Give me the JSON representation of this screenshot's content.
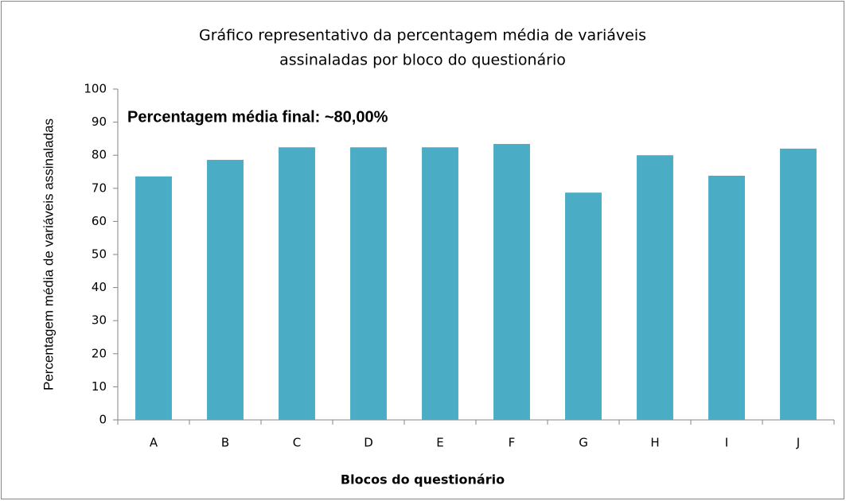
{
  "chart_data": {
    "type": "bar",
    "title": [
      "Gráfico representativo da percentagem média de variáveis",
      "assinaladas por bloco do questionário"
    ],
    "annotation": "Percentagem média final: ~80,00%",
    "xlabel": "Blocos do questionário",
    "ylabel": "Percentagem média de variáveis assinaladas",
    "categories": [
      "A",
      "B",
      "C",
      "D",
      "E",
      "F",
      "G",
      "H",
      "I",
      "J"
    ],
    "values": [
      73.6,
      78.6,
      82.4,
      82.4,
      82.4,
      83.4,
      68.7,
      80,
      73.8,
      82
    ],
    "color": "#4bacc6",
    "ylim": [
      0,
      100
    ],
    "yticks": [
      0,
      10,
      20,
      30,
      40,
      50,
      60,
      70,
      80,
      90,
      100
    ],
    "grid": false
  }
}
